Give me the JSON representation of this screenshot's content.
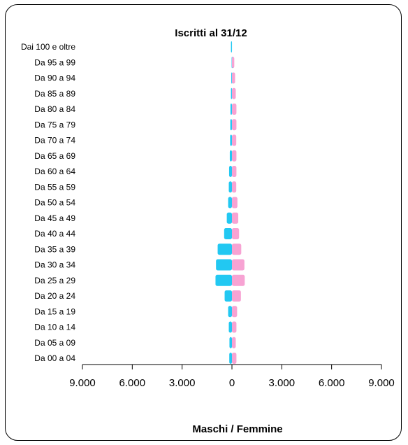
{
  "chart_data": {
    "type": "bar",
    "orientation": "horizontal-population-pyramid",
    "title": "Iscritti al 31/12",
    "xlabel": "Maschi  / Femmine",
    "ylabel": "",
    "xlim": [
      -9000,
      9000
    ],
    "x_ticks": [
      {
        "value": -9000,
        "label": "9.000"
      },
      {
        "value": -6000,
        "label": "6.000"
      },
      {
        "value": -3000,
        "label": "3.000"
      },
      {
        "value": 0,
        "label": "0"
      },
      {
        "value": 3000,
        "label": "3.000"
      },
      {
        "value": 6000,
        "label": "6.000"
      },
      {
        "value": 9000,
        "label": "9.000"
      }
    ],
    "categories": [
      "Dai 100 e oltre",
      "Da 95 a 99",
      "Da 90 a 94",
      "Da 85 a 89",
      "Da 80 a 84",
      "Da 75 a 79",
      "Da 70 a 74",
      "Da 65 a 69",
      "Da 60 a 64",
      "Da 55 a 59",
      "Da 50 a 54",
      "Da 45 a 49",
      "Da 40 a 44",
      "Da 35 a 39",
      "Da 30 a 34",
      "Da 25 a 29",
      "Da 20 a 24",
      "Da 15 a 19",
      "Da 10 a 14",
      "Da 05 a 09",
      "Da 00 a 04"
    ],
    "series": [
      {
        "color": "#22c8f2",
        "values": [
          60,
          20,
          40,
          60,
          90,
          100,
          110,
          130,
          170,
          190,
          230,
          310,
          470,
          860,
          960,
          990,
          440,
          230,
          190,
          150,
          160
        ]
      },
      {
        "color": "#f7a3d3",
        "values": [
          0,
          140,
          190,
          230,
          270,
          270,
          260,
          270,
          270,
          260,
          330,
          380,
          430,
          560,
          750,
          770,
          540,
          310,
          270,
          230,
          270
        ]
      }
    ],
    "grid": false,
    "legend": "none"
  }
}
